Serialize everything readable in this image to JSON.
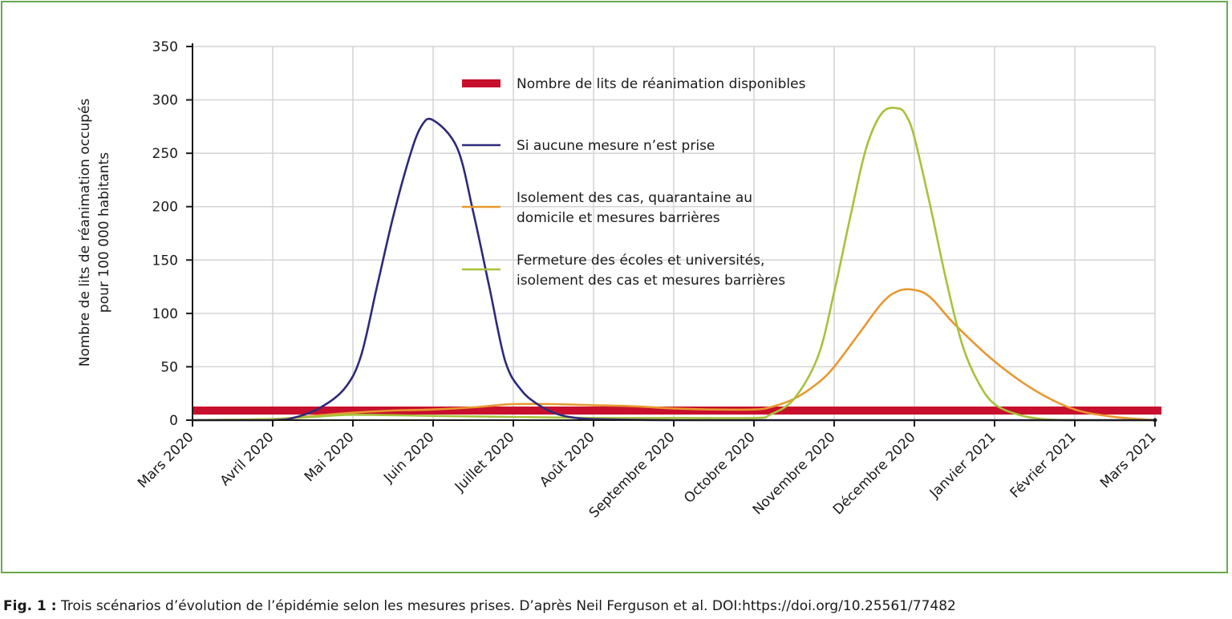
{
  "caption": {
    "label": "Fig. 1 :",
    "text": "Trois scénarios d’évolution de l’épidémie selon les mesures prises. D’après Neil Ferguson et al. DOI:https://doi.org/10.25561/77482"
  },
  "colors": {
    "frame": "#6aa84f",
    "grid": "#d4d4d4",
    "capacity": "#c8102e",
    "no_measures": "#2e2a7a",
    "isolation": "#e8982f",
    "schools": "#a6c23a"
  },
  "chart_data": {
    "type": "line",
    "title": "",
    "xlabel": "",
    "ylabel": "Nombre de lits de réanimation occupés pour 100 000 habitants",
    "ylabel_lines": [
      "Nombre de lits de réanimation occupés",
      "pour 100 000 habitants"
    ],
    "ylim": [
      0,
      350
    ],
    "yticks": [
      0,
      50,
      100,
      150,
      200,
      250,
      300,
      350
    ],
    "xlim": [
      0,
      12
    ],
    "xticks": [
      0,
      1,
      2,
      3,
      4,
      5,
      6,
      7,
      8,
      9,
      10,
      11,
      12
    ],
    "xticklabels": [
      "Mars 2020",
      "Avril 2020",
      "Mai 2020",
      "Juin 2020",
      "Juillet 2020",
      "Août 2020",
      "Septembre 2020",
      "Octobre 2020",
      "Novembre 2020",
      "Décembre 2020",
      "Janvier 2021",
      "Février 2021",
      "Mars 2021"
    ],
    "grid": true,
    "legend_position": "top-center",
    "series": [
      {
        "name": "Nombre de lits de réanimation disponibles",
        "key": "capacity",
        "style": "thick-band",
        "x": [
          0,
          12
        ],
        "y": [
          9,
          9
        ]
      },
      {
        "name": "Si aucune mesure n’est prise",
        "key": "no_measures",
        "x": [
          0,
          1,
          1.3,
          1.6,
          1.9,
          2.1,
          2.3,
          2.5,
          2.7,
          2.85,
          3.0,
          3.3,
          3.5,
          3.7,
          3.9,
          4.1,
          4.3,
          4.5,
          4.7,
          5.0,
          6,
          7,
          8,
          9,
          10,
          11,
          12
        ],
        "y": [
          0,
          0,
          3,
          12,
          30,
          60,
          125,
          190,
          245,
          275,
          281,
          255,
          195,
          125,
          55,
          28,
          15,
          7,
          3,
          1,
          0,
          0,
          0,
          0,
          0,
          0,
          0
        ]
      },
      {
        "name": "Isolement des cas, quarantaine au domicile et mesures barrières",
        "key": "isolation",
        "x": [
          0,
          1,
          1.5,
          2,
          2.5,
          3,
          3.5,
          3.8,
          4,
          4.5,
          5,
          5.5,
          6,
          6.5,
          7,
          7.2,
          7.5,
          7.8,
          8,
          8.3,
          8.6,
          8.8,
          9.0,
          9.2,
          9.5,
          10,
          10.5,
          11,
          11.5,
          12
        ],
        "y": [
          0,
          1,
          4,
          7,
          9,
          10,
          12,
          14,
          15,
          15,
          14,
          13,
          11,
          10,
          10,
          12,
          20,
          35,
          50,
          80,
          110,
          121,
          122,
          115,
          90,
          55,
          28,
          10,
          3,
          0
        ]
      },
      {
        "name": "Fermeture des écoles et universités, isolement des cas et mesures barrières",
        "key": "schools",
        "x": [
          0,
          1,
          1.5,
          2,
          3,
          4,
          5,
          6,
          7,
          7.2,
          7.5,
          7.8,
          8,
          8.2,
          8.4,
          8.6,
          8.8,
          8.9,
          9.0,
          9.2,
          9.4,
          9.6,
          9.8,
          10,
          10.3,
          10.6,
          11,
          12
        ],
        "y": [
          0,
          1,
          3,
          5,
          4,
          3,
          2,
          2,
          2,
          5,
          20,
          60,
          120,
          190,
          255,
          288,
          292,
          285,
          265,
          200,
          130,
          70,
          35,
          15,
          5,
          1,
          0,
          0
        ]
      }
    ],
    "legend": [
      "Nombre de lits de réanimation disponibles",
      "Si aucune mesure n’est prise",
      [
        "Isolement des cas, quarantaine au",
        "domicile et mesures barrières"
      ],
      [
        "Fermeture des écoles et universités,",
        "isolement des cas et mesures barrières"
      ]
    ]
  }
}
